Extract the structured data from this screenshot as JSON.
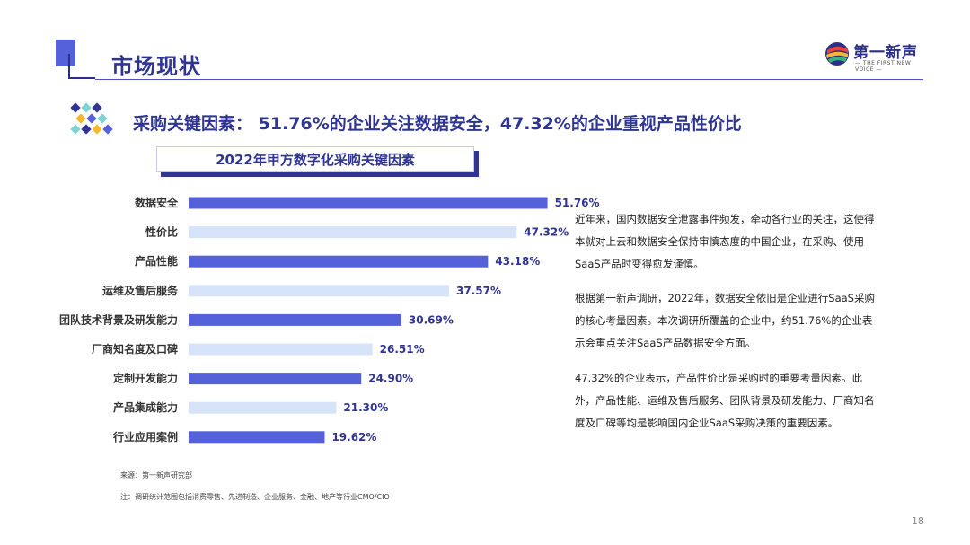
{
  "header": {
    "title": "市场现状"
  },
  "logo": {
    "name_cn": "第一新声",
    "name_en": "— THE FIRST NEW VOICE —"
  },
  "headline": "采购关键因素： 51.76%的企业关注数据安全，47.32%的企业重视产品性价比",
  "chart_data": {
    "type": "bar",
    "orientation": "horizontal",
    "title": "2022年甲方数字化采购关键因素",
    "categories": [
      "数据安全",
      "性价比",
      "产品性能",
      "运维及售后服务",
      "团队技术背景及研发能力",
      "厂商知名度及口碑",
      "定制开发能力",
      "产品集成能力",
      "行业应用案例"
    ],
    "values": [
      51.76,
      47.32,
      43.18,
      37.57,
      30.69,
      26.51,
      24.9,
      21.3,
      19.62
    ],
    "value_labels": [
      "51.76%",
      "47.32%",
      "43.18%",
      "37.57%",
      "30.69%",
      "26.51%",
      "24.90%",
      "21.30%",
      "19.62%"
    ],
    "unit": "%",
    "colors": [
      "#5561d8",
      "#d6e3f8"
    ],
    "grid": false,
    "legend": "none"
  },
  "text_blocks": [
    "近年来，国内数据安全泄露事件频发，牵动各行业的关注，这使得本就对上云和数据安全保持审慎态度的中国企业，在采购、使用SaaS产品时变得愈发谨慎。",
    "根据第一新声调研，2022年，数据安全依旧是企业进行SaaS采购的核心考量因素。本次调研所覆盖的企业中，约51.76%的企业表示会重点关注SaaS产品数据安全方面。",
    "47.32%的企业表示，产品性价比是采购时的重要考量因素。此外，产品性能、运维及售后服务、团队背景及研发能力、厂商知名度及口碑等均是影响国内企业SaaS采购决策的重要因素。"
  ],
  "source": "来源：第一新声研究部",
  "note": "注：调研统计范围包括消费零售、先进制造、企业服务、金融、地产等行业CMO/CIO",
  "page_number": "18"
}
